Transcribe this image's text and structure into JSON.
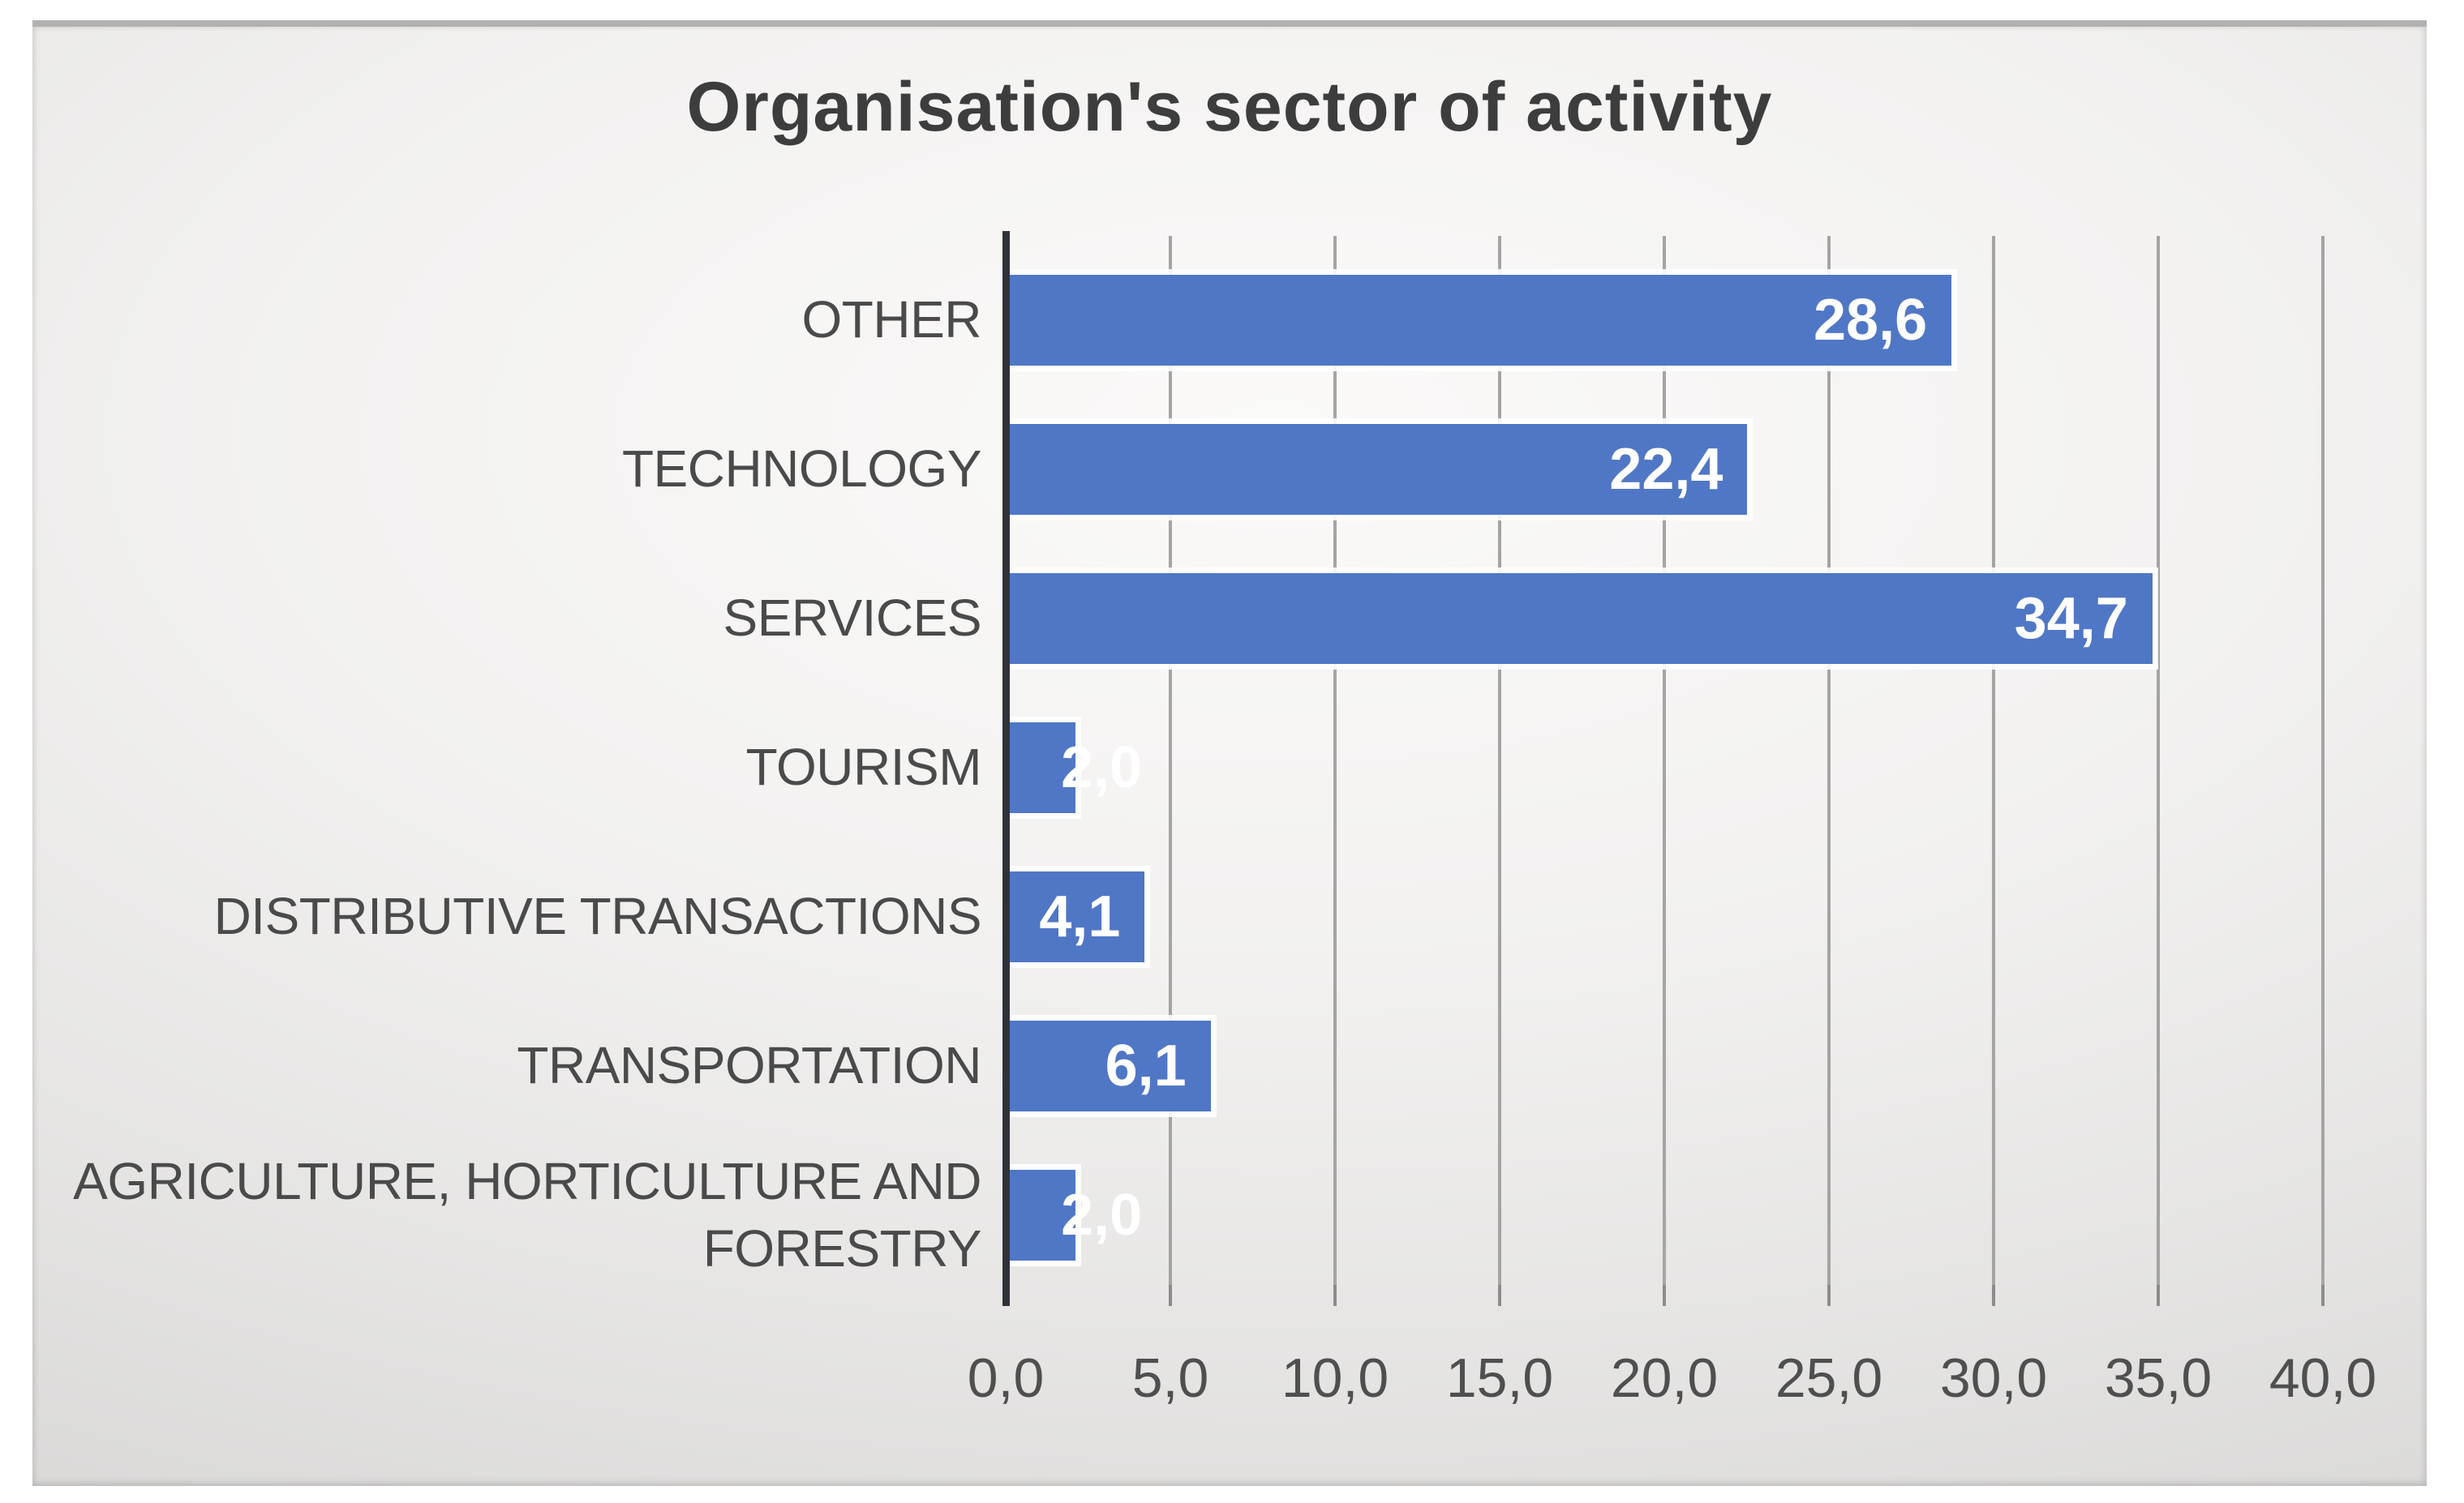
{
  "chart_data": {
    "type": "bar",
    "orientation": "horizontal",
    "title": "Organisation's sector of activity",
    "categories": [
      "OTHER",
      "TECHNOLOGY",
      "SERVICES",
      "TOURISM",
      "DISTRIBUTIVE TRANSACTIONS",
      "TRANSPORTATION",
      "AGRICULTURE, HORTICULTURE AND FORESTRY"
    ],
    "values": [
      28.6,
      22.4,
      34.7,
      2.0,
      4.1,
      6.1,
      2.0
    ],
    "value_labels": [
      "28,6",
      "22,4",
      "34,7",
      "2,0",
      "4,1",
      "6,1",
      "2,0"
    ],
    "xlabel": "",
    "ylabel": "",
    "xlim": [
      0,
      40
    ],
    "x_ticks": [
      0,
      5,
      10,
      15,
      20,
      25,
      30,
      35,
      40
    ],
    "x_tick_labels": [
      "0,0",
      "5,0",
      "10,0",
      "15,0",
      "20,0",
      "25,0",
      "30,0",
      "35,0",
      "40,0"
    ],
    "grid": true,
    "legend": false,
    "data_label_position": "inside-end",
    "colors": {
      "bar": "#5077c5",
      "bar_halo": "#ffffff",
      "gridline": "#a5a4a3",
      "axis_line": "#31313a",
      "title_text": "#3d3d3d",
      "category_text": "#4a4a4a",
      "tick_text": "#4f4f4f",
      "value_label_text": "#ffffff",
      "background_center": "#fbfaf9",
      "background_edge": "#bab9b8"
    }
  }
}
